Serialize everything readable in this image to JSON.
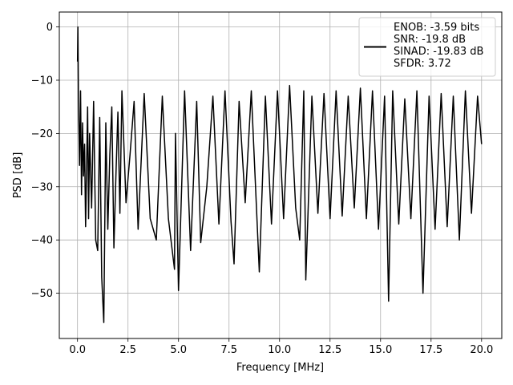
{
  "chart_data": {
    "type": "line",
    "xlabel": "Frequency [MHz]",
    "ylabel": "PSD [dB]",
    "xlim": [
      -0.9,
      21.0
    ],
    "ylim": [
      -58.5,
      2.8
    ],
    "x_ticks": [
      0.0,
      2.5,
      5.0,
      7.5,
      10.0,
      12.5,
      15.0,
      17.5,
      20.0
    ],
    "x_tick_labels": [
      "0.0",
      "2.5",
      "5.0",
      "7.5",
      "10.0",
      "12.5",
      "15.0",
      "17.5",
      "20.0"
    ],
    "y_ticks": [
      0,
      -10,
      -20,
      -30,
      -40,
      -50
    ],
    "y_tick_labels": [
      "0",
      "−10",
      "−20",
      "−30",
      "−40",
      "−50"
    ],
    "grid": true,
    "legend_position": "top-right",
    "colors": {
      "line": "#000000",
      "grid": "#b0b0b0",
      "axes": "#000000"
    },
    "series": [
      {
        "name": "",
        "x": [
          0.0,
          0.02,
          0.05,
          0.1,
          0.15,
          0.2,
          0.25,
          0.3,
          0.35,
          0.4,
          0.5,
          0.55,
          0.6,
          0.7,
          0.8,
          0.9,
          1.0,
          1.1,
          1.2,
          1.3,
          1.4,
          1.5,
          1.6,
          1.7,
          1.8,
          1.9,
          2.0,
          2.1,
          2.2,
          2.4,
          2.6,
          2.8,
          3.0,
          3.3,
          3.6,
          3.9,
          4.2,
          4.5,
          4.8,
          4.85,
          5.0,
          5.3,
          5.6,
          5.9,
          6.1,
          6.4,
          6.7,
          7.0,
          7.3,
          7.6,
          7.75,
          8.0,
          8.3,
          8.6,
          9.0,
          9.3,
          9.6,
          9.9,
          10.2,
          10.5,
          10.8,
          11.0,
          11.2,
          11.3,
          11.6,
          11.9,
          12.2,
          12.5,
          12.8,
          13.1,
          13.4,
          13.7,
          14.0,
          14.3,
          14.6,
          14.9,
          15.2,
          15.4,
          15.6,
          15.9,
          16.2,
          16.5,
          16.8,
          17.1,
          17.4,
          17.7,
          18.0,
          18.3,
          18.6,
          18.9,
          19.2,
          19.5,
          19.8,
          20.0
        ],
        "y": [
          -6.5,
          0.0,
          -14.0,
          -26.0,
          -12.0,
          -31.5,
          -18.0,
          -28.0,
          -22.0,
          -37.5,
          -15.0,
          -36.0,
          -20.0,
          -34.0,
          -14.0,
          -40.0,
          -42.0,
          -17.0,
          -47.0,
          -55.5,
          -18.0,
          -38.0,
          -24.0,
          -15.0,
          -41.5,
          -28.0,
          -16.0,
          -35.0,
          -12.0,
          -33.0,
          -24.0,
          -14.0,
          -38.0,
          -12.5,
          -36.0,
          -40.0,
          -13.0,
          -36.0,
          -45.5,
          -20.0,
          -49.5,
          -12.0,
          -42.0,
          -14.0,
          -40.5,
          -30.0,
          -13.0,
          -37.0,
          -12.0,
          -36.5,
          -44.5,
          -14.0,
          -33.0,
          -12.0,
          -46.0,
          -13.0,
          -37.0,
          -12.0,
          -36.0,
          -11.0,
          -34.0,
          -40.0,
          -12.0,
          -47.5,
          -13.0,
          -35.0,
          -12.5,
          -36.0,
          -12.0,
          -35.5,
          -13.0,
          -34.0,
          -11.5,
          -36.0,
          -12.0,
          -38.0,
          -13.0,
          -51.5,
          -12.0,
          -37.0,
          -13.5,
          -36.0,
          -12.0,
          -50.0,
          -13.0,
          -38.0,
          -12.5,
          -37.5,
          -13.0,
          -40.0,
          -12.0,
          -35.0,
          -13.0,
          -22.0
        ]
      }
    ]
  },
  "legend": {
    "lines": [
      "ENOB: -3.59 bits",
      "SNR: -19.8 dB",
      "SINAD: -19.83 dB",
      "SFDR: 3.72"
    ]
  }
}
